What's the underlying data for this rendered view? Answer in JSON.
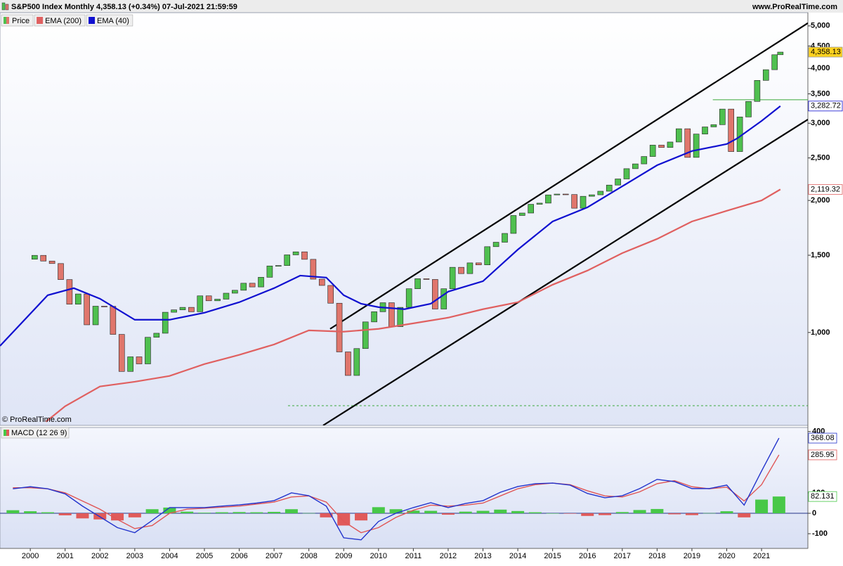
{
  "header": {
    "title": "S&P500 Index Monthly 4,358.13 (+0.34%) 07-Jul-2021 21:59:59",
    "site": "www.ProRealTime.com"
  },
  "chart_data": [
    {
      "type": "candlestick",
      "log_scale": true,
      "legend_corner": "top-left",
      "watermark": "© ProRealTime.com",
      "xlim": [
        1999.13,
        2022.33
      ],
      "ylim": [
        614,
        5360
      ],
      "yticks": [
        {
          "value": 1000,
          "label": "1,000"
        },
        {
          "value": 1500,
          "label": "1,500"
        },
        {
          "value": 2000,
          "label": "2,000"
        },
        {
          "value": 2500,
          "label": "2,500"
        },
        {
          "value": 3000,
          "label": "3,000"
        },
        {
          "value": 3500,
          "label": "3,500"
        },
        {
          "value": 4000,
          "label": "4,000"
        },
        {
          "value": 4500,
          "label": "4,500"
        },
        {
          "value": 5000,
          "label": "5,000"
        }
      ],
      "up_color": "#4fc04f",
      "down_color": "#e0766c",
      "series": [
        {
          "name": "Price",
          "type": "candlestick",
          "x": [
            1999.875,
            2000.125,
            2000.375,
            2000.625,
            2000.875,
            2001.125,
            2001.375,
            2001.625,
            2001.875,
            2002.125,
            2002.375,
            2002.625,
            2002.875,
            2003.125,
            2003.375,
            2003.625,
            2003.875,
            2004.125,
            2004.375,
            2004.625,
            2004.875,
            2005.125,
            2005.375,
            2005.625,
            2005.875,
            2006.125,
            2006.375,
            2006.625,
            2006.875,
            2007.125,
            2007.375,
            2007.625,
            2007.875,
            2008.125,
            2008.375,
            2008.625,
            2008.875,
            2009.125,
            2009.375,
            2009.625,
            2009.875,
            2010.125,
            2010.375,
            2010.625,
            2010.875,
            2011.125,
            2011.375,
            2011.625,
            2011.875,
            2012.125,
            2012.375,
            2012.625,
            2012.875,
            2013.125,
            2013.375,
            2013.625,
            2013.875,
            2014.125,
            2014.375,
            2014.625,
            2014.875,
            2015.125,
            2015.375,
            2015.625,
            2015.875,
            2016.125,
            2016.375,
            2016.625,
            2016.875,
            2017.125,
            2017.375,
            2017.625,
            2017.875,
            2018.125,
            2018.375,
            2018.625,
            2018.875,
            2019.125,
            2019.375,
            2019.625,
            2019.875,
            2020.125,
            2020.375,
            2020.625,
            2020.875,
            2021.125,
            2021.375,
            2021.54
          ],
          "values": [
            1469,
            1499,
            1455,
            1436,
            1320,
            1160,
            1224,
            1041,
            1148,
            1147,
            990,
            815,
            880,
            848,
            975,
            996,
            1112,
            1126,
            1141,
            1115,
            1212,
            1181,
            1191,
            1229,
            1248,
            1295,
            1270,
            1336,
            1418,
            1421,
            1503,
            1527,
            1468,
            1323,
            1280,
            1166,
            903,
            798,
            919,
            1057,
            1115,
            1169,
            1031,
            1141,
            1258,
            1326,
            1321,
            1131,
            1258,
            1408,
            1362,
            1441,
            1426,
            1569,
            1606,
            1682,
            1848,
            1872,
            1960,
            1972,
            2059,
            2068,
            2063,
            1920,
            2044,
            2060,
            2099,
            2168,
            2239,
            2363,
            2423,
            2519,
            2674,
            2641,
            2718,
            2914,
            2507,
            2834,
            2942,
            2977,
            3231,
            2585,
            3100,
            3363,
            3756,
            3973,
            4298,
            4358.13
          ],
          "value_labels": [
            null,
            null,
            null,
            null,
            null,
            null,
            null,
            null,
            null,
            null,
            null,
            null,
            null,
            null,
            null,
            null,
            null,
            null,
            null,
            null,
            null,
            null,
            null,
            null,
            null,
            null,
            null,
            null,
            null,
            null,
            null,
            null,
            null,
            null,
            null,
            null,
            null,
            null,
            null,
            null,
            null,
            null,
            null,
            null,
            null,
            null,
            null,
            null,
            null,
            null,
            null,
            null,
            null,
            null,
            null,
            null,
            null,
            null,
            null,
            null,
            null,
            null,
            null,
            null,
            null,
            null,
            null,
            null,
            null,
            null,
            null,
            null,
            null,
            null,
            null,
            null,
            null,
            null,
            null,
            null,
            null,
            null,
            null,
            null,
            null,
            null,
            null,
            "4,358.13"
          ]
        },
        {
          "name": "EMA (200)",
          "type": "line",
          "color": "#e06060",
          "x": [
            2000.45,
            2001,
            2002,
            2003,
            2004,
            2005,
            2006,
            2007,
            2008,
            2009,
            2010,
            2011,
            2012,
            2013,
            2014,
            2015,
            2016,
            2017,
            2018,
            2019,
            2020,
            2021,
            2021.54
          ],
          "values": [
            626,
            679,
            753,
            772,
            796,
            847,
            889,
            939,
            1011,
            1004,
            1019,
            1049,
            1081,
            1130,
            1172,
            1285,
            1384,
            1517,
            1634,
            1791,
            1894,
            2000,
            2119.32
          ],
          "value_labels": [
            null,
            null,
            null,
            null,
            null,
            null,
            null,
            null,
            null,
            null,
            null,
            null,
            null,
            null,
            null,
            null,
            null,
            null,
            null,
            null,
            null,
            null,
            "2,119.32"
          ]
        },
        {
          "name": "EMA (40)",
          "type": "line",
          "color": "#1010d0",
          "x": [
            1999.13,
            2000.5,
            2001.25,
            2002,
            2003,
            2004,
            2005,
            2006,
            2007,
            2007.75,
            2008.5,
            2009,
            2009.5,
            2010,
            2010.75,
            2011.5,
            2012,
            2013,
            2014,
            2015,
            2016,
            2017,
            2018,
            2019,
            2020,
            2020.3,
            2021,
            2021.54
          ],
          "values": [
            932,
            1216,
            1262,
            1194,
            1069,
            1069,
            1109,
            1172,
            1262,
            1348,
            1334,
            1216,
            1163,
            1142,
            1130,
            1163,
            1239,
            1309,
            1545,
            1791,
            1929,
            2154,
            2406,
            2592,
            2689,
            2770,
            3036,
            3282.72
          ],
          "value_labels": [
            null,
            null,
            null,
            null,
            null,
            null,
            null,
            null,
            null,
            null,
            null,
            null,
            null,
            null,
            null,
            null,
            null,
            null,
            null,
            null,
            null,
            null,
            null,
            null,
            null,
            null,
            null,
            "3,282.72"
          ]
        }
      ],
      "hlines": [
        {
          "value": 3393,
          "start": 2019.6,
          "dashed": false,
          "color": "#3aa83a"
        },
        {
          "value": 681,
          "start": 2007.4,
          "dashed": true,
          "color": "#3aa83a"
        }
      ],
      "trendlines": [
        {
          "x": [
            2008.61,
            2022.33
          ],
          "y": [
            1019,
            5075
          ],
          "color": "#000000"
        },
        {
          "x": [
            2008.41,
            2022.33
          ],
          "y": [
            614,
            3059
          ],
          "color": "#000000"
        }
      ]
    },
    {
      "type": "macd",
      "title": "MACD (12 26 9)",
      "xlim": [
        1999.13,
        2022.33
      ],
      "xticks": [
        2000,
        2001,
        2002,
        2003,
        2004,
        2005,
        2006,
        2007,
        2008,
        2009,
        2010,
        2011,
        2012,
        2013,
        2014,
        2015,
        2016,
        2017,
        2018,
        2019,
        2020,
        2021
      ],
      "ylim": [
        -172,
        420
      ],
      "yticks": [
        -100,
        0,
        100,
        400
      ],
      "x": [
        1999.5,
        2000,
        2000.5,
        2001,
        2001.5,
        2002,
        2002.5,
        2003,
        2003.5,
        2004,
        2004.5,
        2005,
        2005.5,
        2006,
        2006.5,
        2007,
        2007.5,
        2008,
        2008.5,
        2009,
        2009.5,
        2010,
        2010.5,
        2011,
        2011.5,
        2012,
        2012.5,
        2013,
        2013.5,
        2014,
        2014.5,
        2015,
        2015.5,
        2016,
        2016.5,
        2017,
        2017.5,
        2018,
        2018.5,
        2019,
        2019.5,
        2020,
        2020.5,
        2021,
        2021.5
      ],
      "series": [
        {
          "type": "bar",
          "color": "#48c848",
          "negative_color": "#e05a5a",
          "values": [
            15,
            10,
            5,
            -10,
            -25,
            -30,
            -35,
            -20,
            20,
            28,
            8,
            3,
            5,
            6,
            5,
            7,
            20,
            1,
            -20,
            -60,
            -35,
            30,
            20,
            13,
            12,
            -7,
            8,
            12,
            18,
            11,
            5,
            0,
            -2,
            -13,
            -9,
            6,
            16,
            21,
            -5,
            -9,
            1,
            10,
            -20,
            67,
            82.131
          ]
        },
        {
          "type": "line",
          "color": "#e05555",
          "values": [
            125,
            125,
            120,
            100,
            60,
            20,
            -30,
            -75,
            -60,
            0,
            20,
            25,
            30,
            35,
            45,
            55,
            80,
            85,
            55,
            -40,
            -95,
            -70,
            -20,
            15,
            40,
            35,
            40,
            50,
            85,
            120,
            140,
            148,
            140,
            110,
            85,
            80,
            105,
            145,
            160,
            130,
            120,
            128,
            60,
            140,
            285.95
          ]
        },
        {
          "type": "line",
          "color": "#2233cc",
          "values": [
            120,
            130,
            120,
            95,
            35,
            -17,
            -70,
            -95,
            -35,
            28,
            28,
            28,
            35,
            41,
            50,
            62,
            100,
            86,
            35,
            -120,
            -130,
            -40,
            0,
            28,
            52,
            28,
            48,
            62,
            103,
            131,
            145,
            148,
            138,
            97,
            76,
            86,
            121,
            166,
            155,
            121,
            121,
            138,
            40,
            207,
            368.08
          ]
        }
      ]
    }
  ]
}
